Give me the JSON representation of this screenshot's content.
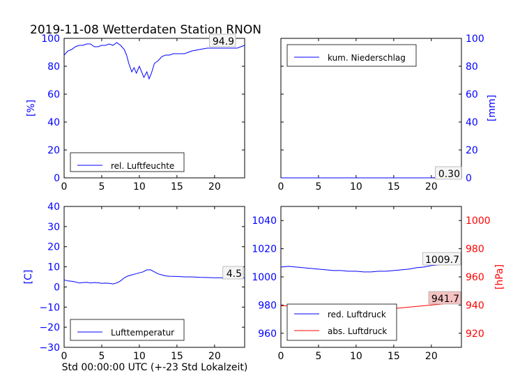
{
  "figure": {
    "title": "2019-11-08 Wetterdaten Station RNON",
    "xlabel": "Std 00:00:00 UTC (+-23 Std Lokalzeit)"
  },
  "colors": {
    "blue": "#0000ff",
    "red": "#ff0000",
    "axis": "#000000"
  },
  "chart_data": [
    {
      "id": "humidity",
      "type": "line",
      "xlim": [
        0,
        24
      ],
      "ylim": [
        0,
        100
      ],
      "xticks": [
        0,
        5,
        10,
        15,
        20
      ],
      "yticks": [
        0,
        20,
        40,
        60,
        80,
        100
      ],
      "ylabel": "[%]",
      "tick_color": "#0000ff",
      "label_color": "#0000ff",
      "legend": "bottom-left",
      "annotation": "94.9",
      "series": [
        {
          "name": "rel. Luftfeuchte",
          "color": "#0000ff",
          "x": [
            0,
            0.5,
            1,
            1.5,
            2,
            2.5,
            3,
            3.5,
            4,
            4.5,
            5,
            5.5,
            6,
            6.5,
            7,
            7.5,
            8,
            8.3,
            8.6,
            9,
            9.3,
            9.6,
            10,
            10.3,
            10.6,
            11,
            11.3,
            11.6,
            12,
            12.5,
            13,
            13.5,
            14,
            14.5,
            15,
            16,
            17,
            18,
            19,
            20,
            21,
            22,
            23,
            24
          ],
          "y": [
            88,
            91,
            92,
            94,
            95,
            95,
            96,
            96,
            94,
            94,
            95,
            95,
            96,
            95,
            97,
            95,
            92,
            88,
            82,
            76,
            79,
            75,
            80,
            76,
            72,
            76,
            71,
            75,
            82,
            84,
            87,
            88,
            88,
            89,
            89,
            89,
            91,
            92,
            93,
            93,
            93,
            93,
            93,
            95
          ]
        }
      ]
    },
    {
      "id": "precipitation",
      "type": "line",
      "xlim": [
        0,
        24
      ],
      "ylim": [
        0,
        100
      ],
      "xticks": [
        0,
        5,
        10,
        15,
        20
      ],
      "yticks": [
        0,
        20,
        40,
        60,
        80,
        100
      ],
      "ylabel": "[mm]",
      "tick_color": "#0000ff",
      "label_color": "#0000ff",
      "y_axis_side": "right",
      "legend": "top-left",
      "annotation": "0.30",
      "series": [
        {
          "name": "kum. Niederschlag",
          "color": "#0000ff",
          "x": [
            0,
            10,
            20,
            21,
            24
          ],
          "y": [
            0,
            0,
            0,
            0.3,
            0.3
          ]
        }
      ]
    },
    {
      "id": "temperature",
      "type": "line",
      "xlim": [
        0,
        24
      ],
      "ylim": [
        -30,
        40
      ],
      "xticks": [
        0,
        5,
        10,
        15,
        20
      ],
      "yticks": [
        -30,
        -20,
        -10,
        0,
        10,
        20,
        30,
        40
      ],
      "ylabel": "[C]",
      "tick_color": "#0000ff",
      "label_color": "#0000ff",
      "legend": "bottom-left",
      "annotation": "4.5",
      "series": [
        {
          "name": "Lufttemperatur",
          "color": "#0000ff",
          "x": [
            0,
            0.5,
            1,
            1.5,
            2,
            2.5,
            3,
            3.5,
            4,
            4.5,
            5,
            5.5,
            6,
            6.5,
            7,
            7.5,
            8,
            8.5,
            9,
            9.5,
            10,
            10.5,
            11,
            11.5,
            12,
            12.5,
            13,
            13.5,
            14,
            15,
            16,
            17,
            18,
            19,
            20,
            21,
            22,
            23,
            24
          ],
          "y": [
            3.5,
            3,
            2.8,
            2.5,
            2,
            2.2,
            2.3,
            2,
            2.2,
            2.1,
            1.8,
            1.9,
            1.8,
            1.5,
            2,
            3,
            4.5,
            5.5,
            6,
            6.5,
            7,
            7.5,
            8.5,
            8.5,
            7.5,
            6.5,
            6,
            5.5,
            5.3,
            5.2,
            5,
            5,
            4.8,
            4.7,
            4.6,
            4.6,
            4.5,
            4.5,
            4.5
          ]
        }
      ]
    },
    {
      "id": "pressure",
      "type": "line",
      "xlim": [
        0,
        24
      ],
      "ylim": [
        950,
        1050
      ],
      "xticks": [
        0,
        5,
        10,
        15,
        20
      ],
      "yticks": [
        960,
        980,
        1000,
        1020,
        1040
      ],
      "tick_color": "#0000ff",
      "legend": "bottom-left",
      "secondary_y": {
        "ylim": [
          910,
          1010
        ],
        "yticks": [
          920,
          940,
          960,
          980,
          1000
        ],
        "ylabel": "[hPa]",
        "color": "#ff0000"
      },
      "annotations": [
        "1009.7",
        "941.7"
      ],
      "series": [
        {
          "name": "red. Luftdruck",
          "color": "#0000ff",
          "axis": "left",
          "x": [
            0,
            1,
            2,
            3,
            4,
            5,
            6,
            7,
            8,
            9,
            10,
            11,
            12,
            13,
            14,
            15,
            16,
            17,
            18,
            19,
            20,
            21,
            22,
            23,
            24
          ],
          "y": [
            1007,
            1007.5,
            1007,
            1006.5,
            1006,
            1005.5,
            1005,
            1004.5,
            1004.5,
            1004,
            1004,
            1003.5,
            1003.5,
            1004,
            1004,
            1004.5,
            1005,
            1005.5,
            1006.5,
            1007,
            1008,
            1008.5,
            1009,
            1009.5,
            1009.7
          ]
        },
        {
          "name": "abs. Luftdruck",
          "color": "#ff0000",
          "axis": "right",
          "x": [
            0,
            1,
            2,
            3,
            4,
            5,
            6,
            7,
            8,
            9,
            10,
            11,
            12,
            13,
            14,
            15,
            16,
            17,
            18,
            19,
            20,
            21,
            22,
            23,
            24
          ],
          "y": [
            939.5,
            939.5,
            939,
            938.5,
            938,
            937.5,
            937,
            937,
            937,
            937,
            937,
            937,
            937,
            937,
            937.5,
            937.5,
            938,
            938.5,
            939,
            939.5,
            940,
            940.5,
            941,
            941.5,
            941.7
          ]
        }
      ]
    }
  ]
}
